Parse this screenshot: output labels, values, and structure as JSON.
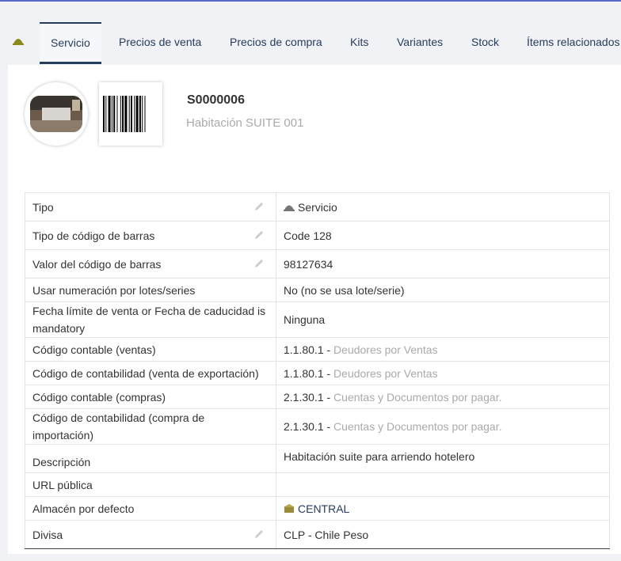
{
  "tabs": [
    "Servicio",
    "Precios de venta",
    "Precios de compra",
    "Kits",
    "Variantes",
    "Stock",
    "Ítems relacionados"
  ],
  "active_tab": 0,
  "product": {
    "ref": "S0000006",
    "label": "Habitación SUITE 001"
  },
  "table": {
    "rows": [
      {
        "label": "Tipo",
        "value": "Servicio",
        "icon": "service",
        "editable": true
      },
      {
        "label": "Tipo de código de barras",
        "value": "Code 128",
        "editable": true
      },
      {
        "label": "Valor del código de barras",
        "value": "98127634",
        "editable": true
      },
      {
        "label": "Usar numeración por lotes/series",
        "value": "No (no se usa lote/serie)"
      },
      {
        "label": "Fecha límite de venta or Fecha de caducidad is mandatory",
        "value": "Ninguna"
      },
      {
        "label": "Código contable (ventas)",
        "value": "1.1.80.1  -",
        "account_label": "Deudores por Ventas"
      },
      {
        "label": "Código de contabilidad (venta de exportación)",
        "value": "1.1.80.1  -",
        "account_label": "Deudores por Ventas"
      },
      {
        "label": "Código contable (compras)",
        "value": "2.1.30.1 -",
        "account_label": "Cuentas y Documentos por pagar."
      },
      {
        "label": "Código de contabilidad (compra de importación)",
        "value": "2.1.30.1 -",
        "account_label": "Cuentas y Documentos por pagar."
      },
      {
        "label": "Descripción",
        "value": "Habitación suite para arriendo hotelero",
        "align": "top"
      },
      {
        "label": "URL pública",
        "value": ""
      },
      {
        "label": "Almacén por defecto",
        "value": "CENTRAL",
        "icon": "warehouse",
        "link": true
      },
      {
        "label": "Divisa",
        "value": "CLP - Chile Peso",
        "editable": true
      }
    ]
  }
}
